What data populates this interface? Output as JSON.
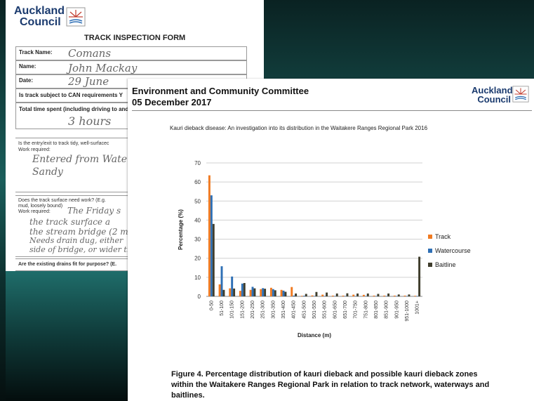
{
  "colors": {
    "bg_dark": "#071a1a",
    "bg_teal": "#1f6d6a",
    "track": "#f07a21",
    "watercourse": "#2e6fb5",
    "baitline": "#3f3d2c",
    "logo_blue": "#1a3a6e"
  },
  "form": {
    "logo_line1": "Auckland",
    "logo_line2": "Council",
    "title": "TRACK INSPECTION FORM",
    "fields": [
      {
        "label": "Track Name:",
        "value": "Comans"
      },
      {
        "label": "Name:",
        "value": "John Mackay"
      },
      {
        "label": "Date:",
        "value": "29 June"
      },
      {
        "label": "Is track subject to CAN requirements Y",
        "value": ""
      },
      {
        "label": "Total time spent (including driving to and",
        "value": "3 hours"
      }
    ],
    "entry_label": "Is the entry/exit to track tidy, well-surfacec",
    "entry_work": "Work required:",
    "entry_value_1": "Entered from Wate",
    "entry_value_2": "Sandy",
    "surface_label": "Does the track surface need work? (E.g.",
    "surface_sub": "mud, loosely bound)",
    "surface_work": "Work required:",
    "surface_value_1": "The Friday s",
    "surface_value_2": "the track surface a",
    "surface_value_3": "the stream bridge (2 m",
    "surface_value_4": "Needs drain dug, either",
    "surface_value_5": "side of bridge, or wider tre",
    "drains_label": "Are the existing drains fit for purpose? (E."
  },
  "doc": {
    "heading_1": "Environment and Community Committee",
    "heading_2": "05 December 2017",
    "logo_line1": "Auckland",
    "logo_line2": "Council",
    "caption": "Kauri dieback disease: An investigation into its distribution in the Waitakere Ranges Regional Park 2016",
    "figure_caption": "Figure 4. Percentage distribution of kauri dieback and possible kauri dieback zones within the Waitakere Ranges Regional Park in relation to track network, waterways and baitlines."
  },
  "chart_data": {
    "type": "bar",
    "xlabel": "Distance (m)",
    "ylabel": "Percentage (%)",
    "ylim": [
      0,
      70
    ],
    "yticks": [
      0,
      10,
      20,
      30,
      40,
      50,
      60,
      70
    ],
    "grid": true,
    "legend_position": "right",
    "categories": [
      "0-50",
      "51-100",
      "101-150",
      "151-200",
      "201-250",
      "251-300",
      "301-350",
      "351-400",
      "401-450",
      "451-500",
      "501-550",
      "551-600",
      "601-650",
      "651-700",
      "701-750",
      "751-800",
      "801-850",
      "851-900",
      "901-950",
      "951-1000",
      "1001+"
    ],
    "series": [
      {
        "name": "Track",
        "color": "#f07a21",
        "values": [
          63.5,
          6.3,
          4.2,
          2.9,
          3.4,
          3.8,
          4.5,
          3.4,
          4.9,
          0.3,
          0.5,
          0.9,
          0.4,
          0.4,
          0.9,
          0.8,
          0.4,
          0.4,
          0.4,
          0.4,
          0.3
        ]
      },
      {
        "name": "Watercourse",
        "color": "#2e6fb5",
        "values": [
          53.0,
          15.8,
          10.4,
          6.7,
          5.0,
          4.3,
          3.8,
          3.0,
          0.4,
          0.3,
          0.2,
          0.2,
          0.2,
          0.2,
          0.2,
          0.2,
          0.2,
          0.2,
          0.2,
          0.2,
          0.2
        ]
      },
      {
        "name": "Baitline",
        "color": "#3f3d2c",
        "values": [
          38.0,
          3.4,
          4.1,
          7.0,
          4.2,
          4.0,
          3.2,
          2.4,
          1.5,
          1.3,
          2.3,
          2.0,
          1.5,
          1.6,
          1.5,
          1.5,
          1.3,
          1.5,
          1.0,
          1.0,
          20.8
        ]
      }
    ]
  }
}
